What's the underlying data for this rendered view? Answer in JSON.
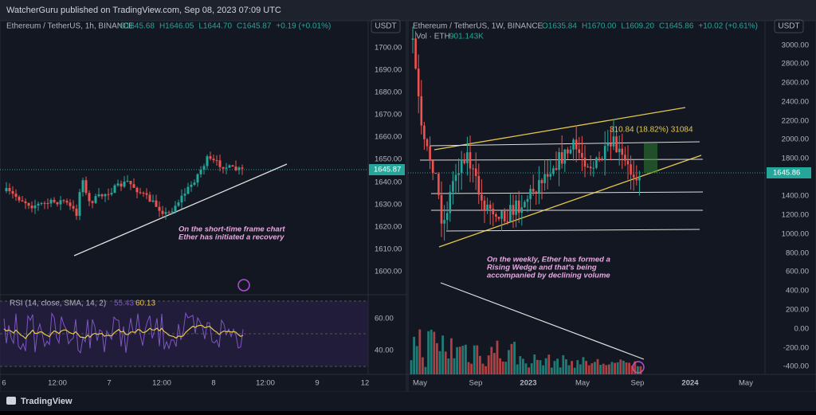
{
  "header": {
    "title": "WatcherGuru published on TradingView.com, Sep 08, 2023 07:09 UTC"
  },
  "left": {
    "symbol": "Ethereum / TetherUS, 1h, BINANCE",
    "ohlc": [
      "O1645.68",
      "H1646.05",
      "L1644.70",
      "C1645.87",
      "+0.19 (+0.01%)"
    ],
    "currency": "USDT",
    "price_labels": [
      "1700.00",
      "1690.00",
      "1680.00",
      "1670.00",
      "1660.00",
      "1650.00",
      "1640.00",
      "1630.00",
      "1620.00",
      "1610.00",
      "1600.00"
    ],
    "last_price": "1645.87",
    "annotation": [
      "On the short-time frame chart",
      "Ether has initiated a recovery"
    ],
    "rsi": {
      "label": "RSI (14, close, SMA, 14, 2)",
      "values": [
        "55.43",
        "60.13"
      ],
      "levels": [
        "60.00",
        "40.00"
      ]
    },
    "time_labels": [
      "6",
      "12:00",
      "7",
      "12:00",
      "8",
      "12:00",
      "9",
      "12"
    ]
  },
  "right": {
    "symbol": "Ethereum / TetherUS, 1W, BINANCE",
    "ohlc": [
      "O1635.84",
      "H1670.00",
      "L1609.20",
      "C1645.86",
      "+10.02 (+0.61%)"
    ],
    "volume": "Vol · ETH",
    "volume_value": "901.143K",
    "currency": "USDT",
    "price_labels": [
      "3000.00",
      "2800.00",
      "2600.00",
      "2400.00",
      "2200.00",
      "2000.00",
      "1800.00",
      "1400.00",
      "1200.00",
      "1000.00",
      "800.00",
      "600.00",
      "400.00",
      "200.00",
      "0.00",
      "-200.00",
      "-400.00"
    ],
    "last_price": "1645.86",
    "measure": "310.84 (18.82%) 31084",
    "annotation": [
      "On the weekly, Ether has formed a",
      "Rising Wedge and that's being",
      "accompanied by declining volume"
    ],
    "time_labels": [
      "May",
      "Sep",
      "2023",
      "May",
      "Sep",
      "2024",
      "May"
    ]
  },
  "footer": {
    "brand": "TradingView"
  }
}
